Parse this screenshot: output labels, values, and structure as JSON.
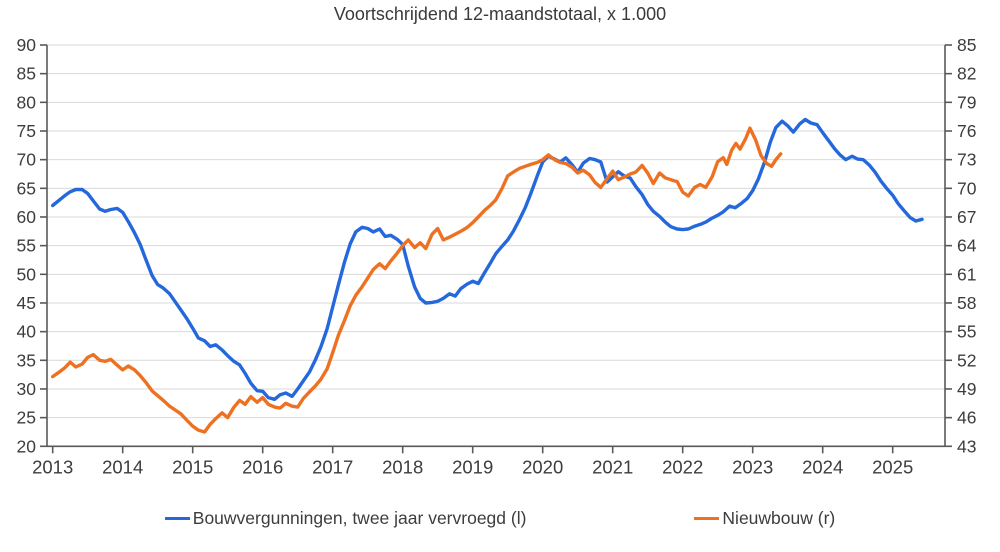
{
  "title": "Voortschrijdend 12-maandstotaal, x 1.000",
  "colors": {
    "blue_series": "#2468dc",
    "orange_series": "#ee7122",
    "grid": "#d9d9d9",
    "axis": "#595959",
    "text": "#3d3d3d"
  },
  "legend": {
    "items": [
      {
        "label": "Bouwvergunningen, twee jaar vervroegd (l)",
        "color": "#2468dc"
      },
      {
        "label": "Nieuwbouw (r)",
        "color": "#ee7122"
      }
    ]
  },
  "chart_data": {
    "type": "line",
    "title": "Voortschrijdend 12-maandstotaal, x 1.000",
    "grid": true,
    "legend_position": "bottom",
    "left_axis": {
      "min": 20,
      "max": 90,
      "step": 5,
      "ticks": [
        20,
        25,
        30,
        35,
        40,
        45,
        50,
        55,
        60,
        65,
        70,
        75,
        80,
        85,
        90
      ]
    },
    "right_axis": {
      "min": 43,
      "max": 85,
      "step": 3,
      "ticks": [
        43,
        46,
        49,
        52,
        55,
        58,
        61,
        64,
        67,
        70,
        73,
        76,
        79,
        82,
        85
      ]
    },
    "x_axis": {
      "ticks": [
        2013,
        2014,
        2015,
        2016,
        2017,
        2018,
        2019,
        2020,
        2021,
        2022,
        2023,
        2024,
        2025
      ]
    },
    "series": [
      {
        "name": "Bouwvergunningen, twee jaar vervroegd (l)",
        "axis": "left",
        "color": "#2468dc",
        "points": [
          [
            2013.0,
            62.0
          ],
          [
            2013.08,
            62.8
          ],
          [
            2013.17,
            63.7
          ],
          [
            2013.25,
            64.4
          ],
          [
            2013.33,
            64.8
          ],
          [
            2013.42,
            64.8
          ],
          [
            2013.5,
            64.1
          ],
          [
            2013.58,
            62.8
          ],
          [
            2013.67,
            61.4
          ],
          [
            2013.75,
            61.0
          ],
          [
            2013.83,
            61.3
          ],
          [
            2013.92,
            61.5
          ],
          [
            2014.0,
            60.8
          ],
          [
            2014.08,
            59.2
          ],
          [
            2014.17,
            57.2
          ],
          [
            2014.25,
            55.2
          ],
          [
            2014.33,
            52.6
          ],
          [
            2014.42,
            49.8
          ],
          [
            2014.5,
            48.2
          ],
          [
            2014.58,
            47.6
          ],
          [
            2014.67,
            46.6
          ],
          [
            2014.75,
            45.2
          ],
          [
            2014.83,
            43.8
          ],
          [
            2014.92,
            42.2
          ],
          [
            2015.0,
            40.6
          ],
          [
            2015.08,
            38.9
          ],
          [
            2015.17,
            38.4
          ],
          [
            2015.25,
            37.4
          ],
          [
            2015.33,
            37.7
          ],
          [
            2015.42,
            36.8
          ],
          [
            2015.5,
            35.8
          ],
          [
            2015.58,
            34.9
          ],
          [
            2015.67,
            34.2
          ],
          [
            2015.75,
            32.7
          ],
          [
            2015.83,
            31.0
          ],
          [
            2015.92,
            29.7
          ],
          [
            2016.0,
            29.6
          ],
          [
            2016.08,
            28.5
          ],
          [
            2016.17,
            28.2
          ],
          [
            2016.25,
            29.0
          ],
          [
            2016.33,
            29.3
          ],
          [
            2016.42,
            28.7
          ],
          [
            2016.5,
            30.0
          ],
          [
            2016.58,
            31.4
          ],
          [
            2016.67,
            33.0
          ],
          [
            2016.75,
            35.0
          ],
          [
            2016.83,
            37.3
          ],
          [
            2016.92,
            40.5
          ],
          [
            2017.0,
            44.3
          ],
          [
            2017.08,
            48.1
          ],
          [
            2017.17,
            52.2
          ],
          [
            2017.25,
            55.3
          ],
          [
            2017.33,
            57.4
          ],
          [
            2017.42,
            58.2
          ],
          [
            2017.5,
            58.0
          ],
          [
            2017.58,
            57.4
          ],
          [
            2017.67,
            57.9
          ],
          [
            2017.75,
            56.6
          ],
          [
            2017.83,
            56.8
          ],
          [
            2017.92,
            56.1
          ],
          [
            2018.0,
            55.2
          ],
          [
            2018.08,
            51.4
          ],
          [
            2018.17,
            47.8
          ],
          [
            2018.25,
            45.8
          ],
          [
            2018.33,
            45.0
          ],
          [
            2018.42,
            45.1
          ],
          [
            2018.5,
            45.3
          ],
          [
            2018.58,
            45.8
          ],
          [
            2018.67,
            46.6
          ],
          [
            2018.75,
            46.2
          ],
          [
            2018.83,
            47.5
          ],
          [
            2018.92,
            48.3
          ],
          [
            2019.0,
            48.8
          ],
          [
            2019.08,
            48.4
          ],
          [
            2019.17,
            50.3
          ],
          [
            2019.25,
            51.9
          ],
          [
            2019.33,
            53.6
          ],
          [
            2019.42,
            54.9
          ],
          [
            2019.5,
            56.0
          ],
          [
            2019.58,
            57.5
          ],
          [
            2019.67,
            59.6
          ],
          [
            2019.75,
            61.6
          ],
          [
            2019.83,
            64.1
          ],
          [
            2019.92,
            67.1
          ],
          [
            2020.0,
            69.6
          ],
          [
            2020.08,
            70.6
          ],
          [
            2020.17,
            70.1
          ],
          [
            2020.25,
            69.6
          ],
          [
            2020.33,
            70.3
          ],
          [
            2020.42,
            69.1
          ],
          [
            2020.5,
            67.8
          ],
          [
            2020.58,
            69.4
          ],
          [
            2020.67,
            70.2
          ],
          [
            2020.75,
            70.0
          ],
          [
            2020.83,
            69.6
          ],
          [
            2020.92,
            66.1
          ],
          [
            2021.0,
            67.0
          ],
          [
            2021.08,
            67.9
          ],
          [
            2021.17,
            67.1
          ],
          [
            2021.25,
            66.8
          ],
          [
            2021.33,
            65.3
          ],
          [
            2021.42,
            63.9
          ],
          [
            2021.5,
            62.2
          ],
          [
            2021.58,
            61.0
          ],
          [
            2021.67,
            60.1
          ],
          [
            2021.75,
            59.1
          ],
          [
            2021.83,
            58.3
          ],
          [
            2021.92,
            57.9
          ],
          [
            2022.0,
            57.8
          ],
          [
            2022.08,
            57.9
          ],
          [
            2022.17,
            58.4
          ],
          [
            2022.25,
            58.7
          ],
          [
            2022.33,
            59.1
          ],
          [
            2022.42,
            59.8
          ],
          [
            2022.5,
            60.3
          ],
          [
            2022.58,
            60.9
          ],
          [
            2022.67,
            61.9
          ],
          [
            2022.75,
            61.6
          ],
          [
            2022.83,
            62.3
          ],
          [
            2022.92,
            63.2
          ],
          [
            2023.0,
            64.6
          ],
          [
            2023.08,
            66.6
          ],
          [
            2023.17,
            69.6
          ],
          [
            2023.25,
            73.0
          ],
          [
            2023.33,
            75.6
          ],
          [
            2023.42,
            76.7
          ],
          [
            2023.5,
            75.9
          ],
          [
            2023.58,
            74.8
          ],
          [
            2023.67,
            76.2
          ],
          [
            2023.75,
            77.0
          ],
          [
            2023.83,
            76.4
          ],
          [
            2023.92,
            76.1
          ],
          [
            2024.0,
            74.7
          ],
          [
            2024.08,
            73.4
          ],
          [
            2024.17,
            71.9
          ],
          [
            2024.25,
            70.8
          ],
          [
            2024.33,
            70.0
          ],
          [
            2024.42,
            70.6
          ],
          [
            2024.5,
            70.1
          ],
          [
            2024.58,
            70.0
          ],
          [
            2024.67,
            69.0
          ],
          [
            2024.75,
            67.8
          ],
          [
            2024.83,
            66.3
          ],
          [
            2024.92,
            64.9
          ],
          [
            2025.0,
            63.8
          ],
          [
            2025.08,
            62.3
          ],
          [
            2025.17,
            61.0
          ],
          [
            2025.25,
            59.9
          ],
          [
            2025.33,
            59.3
          ],
          [
            2025.42,
            59.6
          ]
        ]
      },
      {
        "name": "Nieuwbouw (r)",
        "axis": "right",
        "color": "#ee7122",
        "points": [
          [
            2013.0,
            50.3
          ],
          [
            2013.08,
            50.7
          ],
          [
            2013.17,
            51.2
          ],
          [
            2013.25,
            51.8
          ],
          [
            2013.33,
            51.3
          ],
          [
            2013.42,
            51.6
          ],
          [
            2013.5,
            52.3
          ],
          [
            2013.58,
            52.6
          ],
          [
            2013.67,
            52.0
          ],
          [
            2013.75,
            51.9
          ],
          [
            2013.83,
            52.1
          ],
          [
            2013.92,
            51.5
          ],
          [
            2014.0,
            51.0
          ],
          [
            2014.08,
            51.4
          ],
          [
            2014.17,
            51.0
          ],
          [
            2014.25,
            50.4
          ],
          [
            2014.33,
            49.7
          ],
          [
            2014.42,
            48.8
          ],
          [
            2014.5,
            48.3
          ],
          [
            2014.58,
            47.8
          ],
          [
            2014.67,
            47.2
          ],
          [
            2014.75,
            46.8
          ],
          [
            2014.83,
            46.4
          ],
          [
            2014.92,
            45.7
          ],
          [
            2015.0,
            45.1
          ],
          [
            2015.08,
            44.7
          ],
          [
            2015.17,
            44.5
          ],
          [
            2015.25,
            45.3
          ],
          [
            2015.33,
            45.9
          ],
          [
            2015.42,
            46.5
          ],
          [
            2015.5,
            46.0
          ],
          [
            2015.58,
            47.0
          ],
          [
            2015.67,
            47.8
          ],
          [
            2015.75,
            47.4
          ],
          [
            2015.83,
            48.2
          ],
          [
            2015.92,
            47.6
          ],
          [
            2016.0,
            48.1
          ],
          [
            2016.08,
            47.4
          ],
          [
            2016.17,
            47.1
          ],
          [
            2016.25,
            47.0
          ],
          [
            2016.33,
            47.5
          ],
          [
            2016.42,
            47.2
          ],
          [
            2016.5,
            47.1
          ],
          [
            2016.58,
            48.0
          ],
          [
            2016.67,
            48.7
          ],
          [
            2016.75,
            49.3
          ],
          [
            2016.83,
            50.0
          ],
          [
            2016.92,
            51.1
          ],
          [
            2017.0,
            52.8
          ],
          [
            2017.08,
            54.6
          ],
          [
            2017.17,
            56.2
          ],
          [
            2017.25,
            57.7
          ],
          [
            2017.33,
            58.8
          ],
          [
            2017.42,
            59.7
          ],
          [
            2017.5,
            60.6
          ],
          [
            2017.58,
            61.5
          ],
          [
            2017.67,
            62.1
          ],
          [
            2017.75,
            61.6
          ],
          [
            2017.83,
            62.4
          ],
          [
            2017.92,
            63.2
          ],
          [
            2018.0,
            64.0
          ],
          [
            2018.08,
            64.6
          ],
          [
            2018.17,
            63.8
          ],
          [
            2018.25,
            64.3
          ],
          [
            2018.33,
            63.7
          ],
          [
            2018.42,
            65.2
          ],
          [
            2018.5,
            65.8
          ],
          [
            2018.58,
            64.6
          ],
          [
            2018.67,
            64.9
          ],
          [
            2018.75,
            65.2
          ],
          [
            2018.83,
            65.5
          ],
          [
            2018.92,
            65.9
          ],
          [
            2019.0,
            66.4
          ],
          [
            2019.08,
            67.0
          ],
          [
            2019.17,
            67.7
          ],
          [
            2019.25,
            68.2
          ],
          [
            2019.33,
            68.8
          ],
          [
            2019.42,
            70.0
          ],
          [
            2019.5,
            71.3
          ],
          [
            2019.58,
            71.7
          ],
          [
            2019.67,
            72.1
          ],
          [
            2019.75,
            72.3
          ],
          [
            2019.83,
            72.5
          ],
          [
            2019.92,
            72.7
          ],
          [
            2020.0,
            73.0
          ],
          [
            2020.08,
            73.5
          ],
          [
            2020.17,
            73.0
          ],
          [
            2020.25,
            72.7
          ],
          [
            2020.33,
            72.6
          ],
          [
            2020.42,
            72.2
          ],
          [
            2020.5,
            71.6
          ],
          [
            2020.58,
            71.9
          ],
          [
            2020.67,
            71.4
          ],
          [
            2020.75,
            70.6
          ],
          [
            2020.83,
            70.1
          ],
          [
            2020.92,
            71.0
          ],
          [
            2021.0,
            71.8
          ],
          [
            2021.08,
            70.9
          ],
          [
            2021.17,
            71.2
          ],
          [
            2021.25,
            71.5
          ],
          [
            2021.33,
            71.7
          ],
          [
            2021.42,
            72.4
          ],
          [
            2021.5,
            71.6
          ],
          [
            2021.58,
            70.5
          ],
          [
            2021.67,
            71.6
          ],
          [
            2021.75,
            71.1
          ],
          [
            2021.83,
            70.9
          ],
          [
            2021.92,
            70.7
          ],
          [
            2022.0,
            69.6
          ],
          [
            2022.08,
            69.2
          ],
          [
            2022.17,
            70.1
          ],
          [
            2022.25,
            70.4
          ],
          [
            2022.33,
            70.1
          ],
          [
            2022.42,
            71.2
          ],
          [
            2022.5,
            72.8
          ],
          [
            2022.58,
            73.2
          ],
          [
            2022.63,
            72.5
          ],
          [
            2022.7,
            74.0
          ],
          [
            2022.76,
            74.7
          ],
          [
            2022.82,
            74.1
          ],
          [
            2022.9,
            75.2
          ],
          [
            2022.96,
            76.3
          ],
          [
            2023.04,
            75.1
          ],
          [
            2023.12,
            73.4
          ],
          [
            2023.2,
            72.6
          ],
          [
            2023.27,
            72.3
          ],
          [
            2023.33,
            73.0
          ],
          [
            2023.4,
            73.6
          ]
        ]
      }
    ]
  }
}
